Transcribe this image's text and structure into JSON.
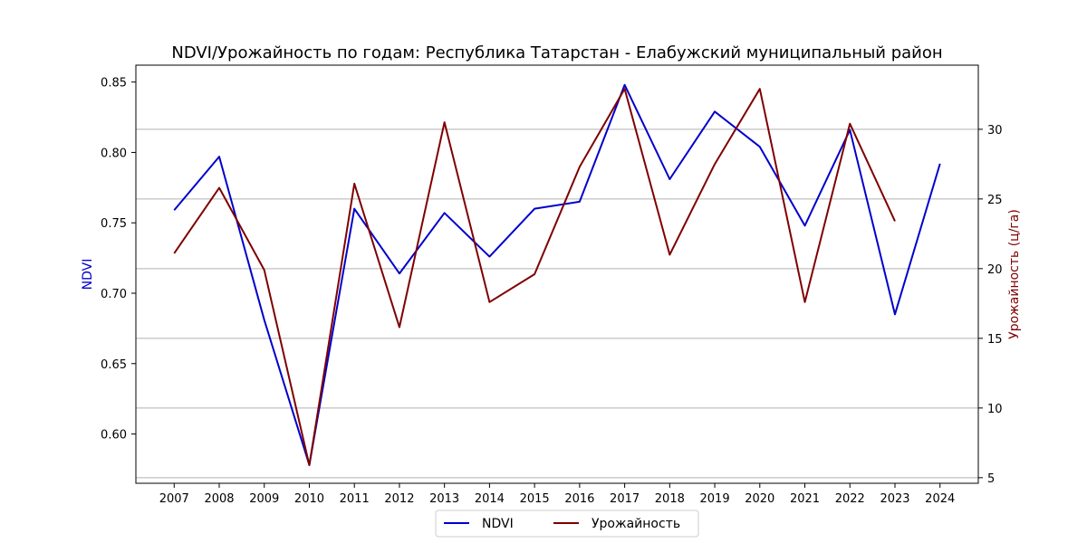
{
  "chart_data": {
    "type": "line",
    "title": "NDVI/Урожайность по годам: Республика Татарстан - Елабужский муниципальный район",
    "x": [
      2007,
      2008,
      2009,
      2010,
      2011,
      2012,
      2013,
      2014,
      2015,
      2016,
      2017,
      2018,
      2019,
      2020,
      2021,
      2022,
      2023,
      2024
    ],
    "y_left_label": "NDVI",
    "y_right_label": "Урожайность (ц/га)",
    "y_left_lim": [
      0.565,
      0.862
    ],
    "y_right_lim": [
      4.6,
      34.6
    ],
    "y_left_ticks": [
      "0.60",
      "0.65",
      "0.70",
      "0.75",
      "0.80",
      "0.85"
    ],
    "y_right_ticks": [
      "5",
      "10",
      "15",
      "20",
      "25",
      "30"
    ],
    "grid": "horizontal lines at right-axis ticks",
    "legend_position": "bottom-center",
    "series": [
      {
        "name": "NDVI",
        "axis": "left",
        "color": "#0000cc",
        "values": [
          0.759,
          0.797,
          0.681,
          0.578,
          0.76,
          0.714,
          0.757,
          0.726,
          0.76,
          0.765,
          0.848,
          0.781,
          0.829,
          0.804,
          0.748,
          0.816,
          0.685,
          0.792
        ]
      },
      {
        "name": "Урожайность",
        "axis": "right",
        "color": "#7f0000",
        "values": [
          21.1,
          25.8,
          19.9,
          5.9,
          26.1,
          15.8,
          30.5,
          17.6,
          19.6,
          27.3,
          32.9,
          21.0,
          27.5,
          32.9,
          17.6,
          30.4,
          23.4,
          null
        ]
      }
    ]
  }
}
